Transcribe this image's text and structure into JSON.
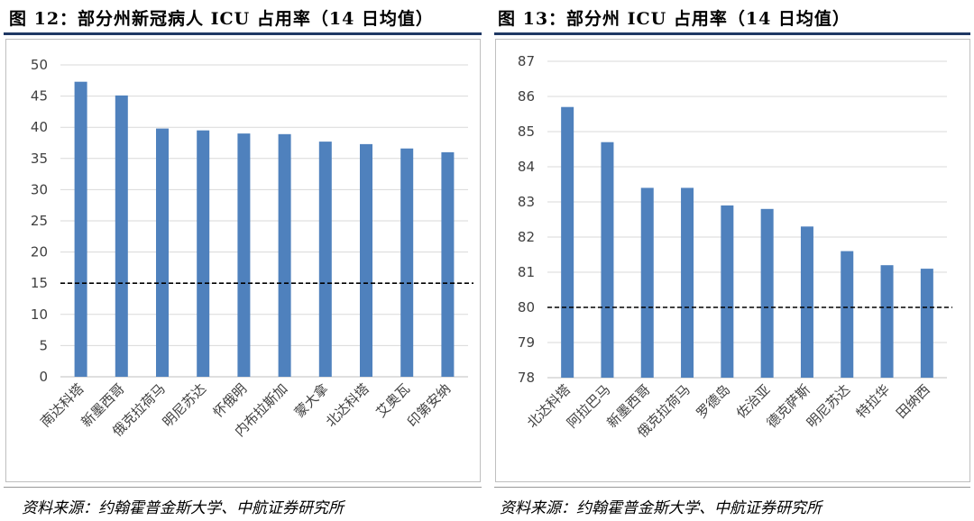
{
  "colors": {
    "bar": "#4f81bd",
    "grid": "#d9d9d9",
    "threshold": "#000000",
    "rule": "#1f3864"
  },
  "figures": [
    {
      "title": "图 12：部分州新冠病人 ICU 占用率（14 日均值）",
      "source": "资料来源：约翰霍普金斯大学、中航证券研究所"
    },
    {
      "title": "图 13：部分州 ICU 占用率（14 日均值）",
      "source": "资料来源：约翰霍普金斯大学、中航证券研究所"
    }
  ],
  "chart_data": [
    {
      "type": "bar",
      "categories": [
        "南达科塔",
        "新墨西哥",
        "俄克拉荷马",
        "明尼苏达",
        "怀俄明",
        "内布拉斯加",
        "蒙大拿",
        "北达科塔",
        "艾奥瓦",
        "印第安纳"
      ],
      "values": [
        47.3,
        45.1,
        39.8,
        39.5,
        39.0,
        38.9,
        37.7,
        37.3,
        36.6,
        36.0
      ],
      "ylim": [
        0,
        50
      ],
      "yticks": [
        0,
        5,
        10,
        15,
        20,
        25,
        30,
        35,
        40,
        45,
        50
      ],
      "threshold": 15,
      "grid": true
    },
    {
      "type": "bar",
      "categories": [
        "北达科塔",
        "阿拉巴马",
        "新墨西哥",
        "俄克拉荷马",
        "罗德岛",
        "佐治亚",
        "德克萨斯",
        "明尼苏达",
        "特拉华",
        "田纳西"
      ],
      "values": [
        85.7,
        84.7,
        83.4,
        83.4,
        82.9,
        82.8,
        82.3,
        81.6,
        81.2,
        81.1
      ],
      "ylim": [
        78,
        87
      ],
      "yticks": [
        78,
        79,
        80,
        81,
        82,
        83,
        84,
        85,
        86,
        87
      ],
      "threshold": 80,
      "grid": true
    }
  ]
}
